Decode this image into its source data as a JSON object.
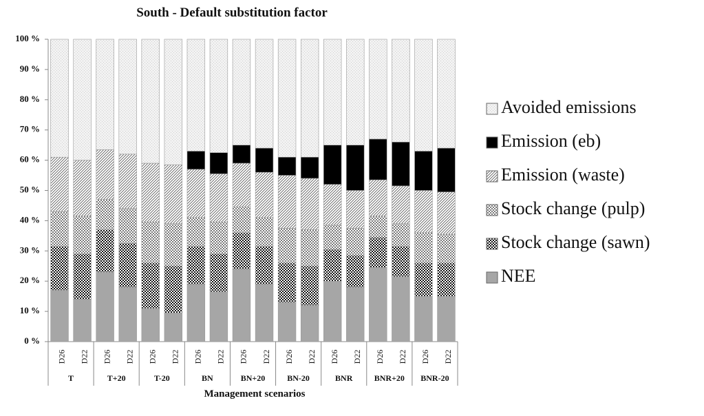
{
  "chart_data": {
    "type": "stacked_bar",
    "title": "South - Default substitution factor",
    "x_label": "Management scenarios",
    "categories": [
      "D26",
      "D22",
      "D26",
      "D22",
      "D26",
      "D22",
      "D26",
      "D22",
      "D26",
      "D22",
      "D26",
      "D22",
      "D26",
      "D22",
      "D26",
      "D22",
      "D26",
      "D22"
    ],
    "groups": [
      "T",
      "T+20",
      "T-20",
      "BN",
      "BN+20",
      "BN-20",
      "BNR",
      "BNR+20",
      "BNR-20"
    ],
    "ylim": [
      0,
      100
    ],
    "yticks": [
      {
        "value": 0,
        "label": "0 %"
      },
      {
        "value": 10,
        "label": "10 %"
      },
      {
        "value": 20,
        "label": "20 %"
      },
      {
        "value": 30,
        "label": "30 %"
      },
      {
        "value": 40,
        "label": "40 %"
      },
      {
        "value": 50,
        "label": "50 %"
      },
      {
        "value": 60,
        "label": "60 %"
      },
      {
        "value": 70,
        "label": "70 %"
      },
      {
        "value": 80,
        "label": "80 %"
      },
      {
        "value": 90,
        "label": "90 %"
      },
      {
        "value": 100,
        "label": "100 %"
      }
    ],
    "series": [
      {
        "name": "NEE",
        "color": "#a6a6a6",
        "pattern": "solid",
        "values": [
          17,
          14,
          23,
          18,
          11,
          9.5,
          19,
          16.5,
          24,
          19,
          13,
          12,
          20,
          18,
          24.5,
          21.5,
          15,
          15
        ]
      },
      {
        "name": "Stock change (sawn)",
        "color": "#111111",
        "pattern": "checker",
        "values": [
          14.5,
          15,
          14,
          14.5,
          15,
          15.5,
          12.5,
          12.5,
          12,
          12.5,
          13,
          13,
          10.5,
          10.5,
          10,
          10,
          11,
          11
        ]
      },
      {
        "name": "Stock change (pulp)",
        "color": "#7a7a7a",
        "pattern": "checker",
        "values": [
          11.5,
          12.5,
          10,
          11.5,
          13.5,
          14,
          9.5,
          10.5,
          8.5,
          9.5,
          11.5,
          12,
          8,
          9,
          7,
          7.5,
          10,
          9.5
        ]
      },
      {
        "name": "Emission (waste)",
        "color": "#bdbdbd",
        "pattern": "hatch",
        "values": [
          18,
          18.5,
          16.5,
          18,
          19.5,
          19.5,
          16,
          16,
          14.5,
          15,
          17.5,
          17,
          13.5,
          12.5,
          12,
          12.5,
          14,
          14
        ]
      },
      {
        "name": "Emission (eb)",
        "color": "#000000",
        "pattern": "solid",
        "values": [
          0,
          0,
          0,
          0,
          0,
          0,
          6,
          7,
          6,
          8,
          6,
          7,
          13,
          15,
          13.5,
          14.5,
          13,
          14.5
        ]
      },
      {
        "name": "Avoided emissions",
        "color": "#cfcfcf",
        "pattern": "dots",
        "values": [
          39,
          40,
          36.5,
          38,
          41,
          41.5,
          37,
          37.5,
          35,
          36,
          39,
          39,
          35,
          35,
          33,
          34,
          37,
          36
        ]
      }
    ]
  }
}
